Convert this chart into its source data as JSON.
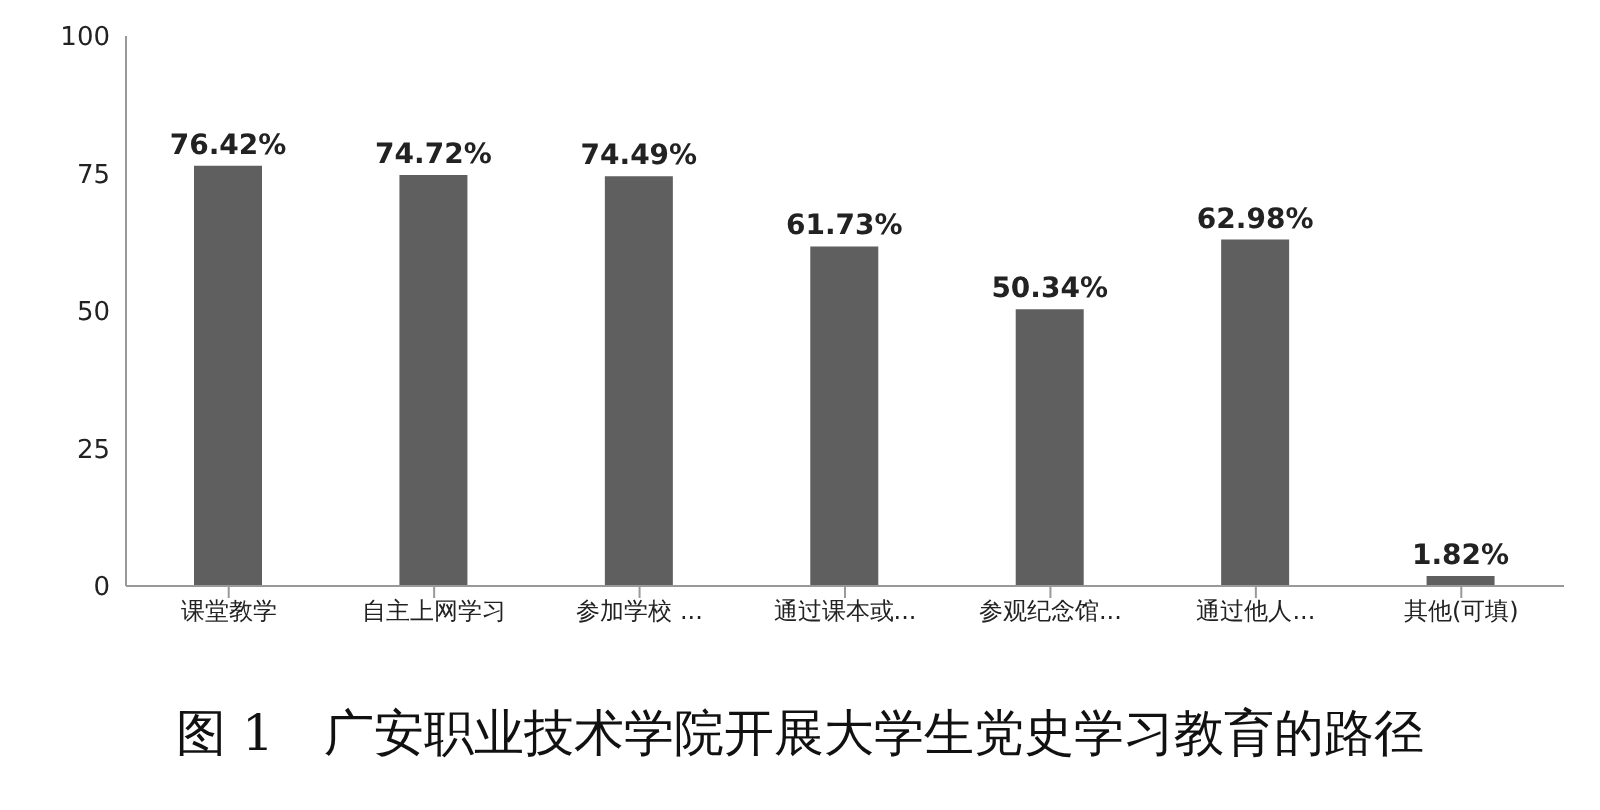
{
  "chart_data": {
    "type": "bar",
    "title": "图 1　广安职业技术学院开展大学生党史学习教育的路径",
    "categories": [
      "课堂教学",
      "自主上网学习",
      "参加学校 ...",
      "通过课本或...",
      "参观纪念馆...",
      "通过他人...",
      "其他(可填)"
    ],
    "values": [
      76.42,
      74.72,
      74.49,
      61.73,
      50.34,
      62.98,
      1.82
    ],
    "value_labels": [
      "76.42%",
      "74.72%",
      "74.49%",
      "61.73%",
      "50.34%",
      "62.98%",
      "1.82%"
    ],
    "color": "#5f5f5f",
    "ylim": [
      0,
      100
    ],
    "yticks": [
      0,
      25,
      50,
      75,
      100
    ],
    "grid": false
  }
}
